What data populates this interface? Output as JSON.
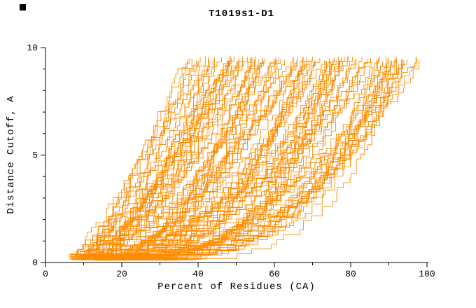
{
  "chart_data": {
    "type": "line",
    "title": "T1019s1-D1",
    "xlabel": "Percent of Residues (CA)",
    "ylabel": "Distance Cutoff, A",
    "xlim": [
      0,
      100
    ],
    "ylim": [
      0,
      10
    ],
    "x_major_ticks": [
      0,
      20,
      40,
      60,
      80,
      100
    ],
    "x_minor_step": 10,
    "y_major_ticks": [
      0,
      5,
      10
    ],
    "y_minor_step": 1,
    "grid": false,
    "legend": "none",
    "line_color": "#ff8c00",
    "axis_color": "#000000",
    "background": "#ffffff",
    "series_spec": {
      "kind": "procedural-bundle",
      "note": "Dense bundle of ~100 monotonic per-model distance-cutoff curves; each rises from roughly (6-32 percent, 0.2 A) at lower left to (38-100 percent, ~9.5 A) at top; steep curves end near 40 percent, flat curves hug the bottom until 90+ percent then rise at the right edge.",
      "count": 100,
      "seed": 11,
      "x_start_range": [
        6,
        32
      ],
      "x_end_range": [
        38,
        100
      ],
      "y_start_range": [
        0.1,
        0.4
      ],
      "y_top_range": [
        9.35,
        9.6
      ]
    }
  }
}
